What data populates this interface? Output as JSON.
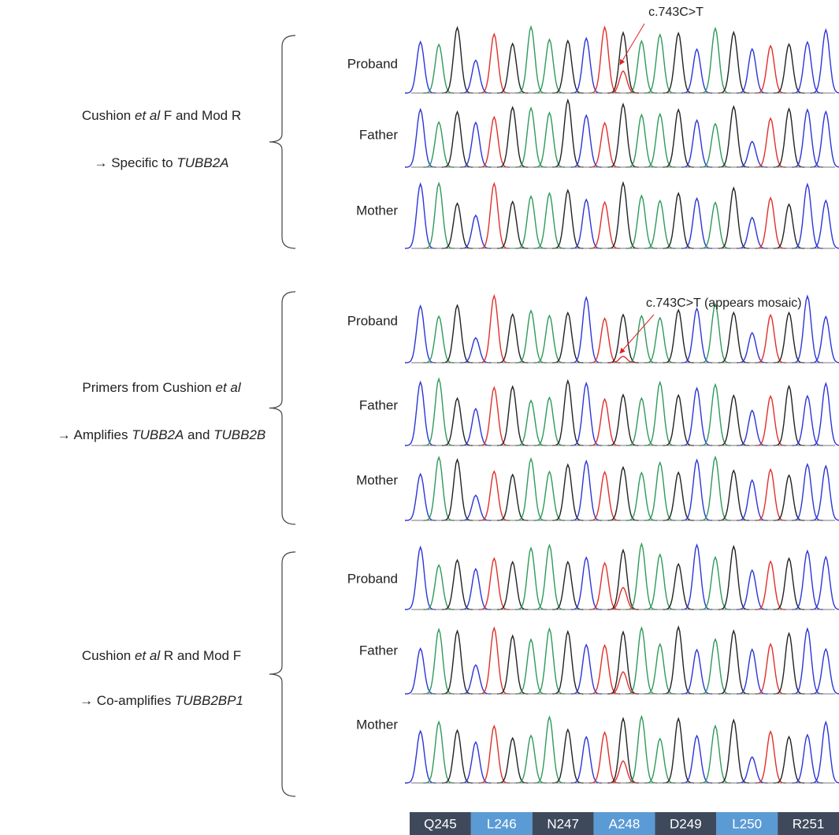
{
  "groups": [
    {
      "description": [
        [
          {
            "text": "Cushion "
          },
          {
            "text": "et al",
            "italic": true
          },
          {
            "text": " F and Mod R"
          }
        ],
        [
          {
            "text": "→ Specific to "
          },
          {
            "text": "TUBB2A",
            "italic": true
          }
        ]
      ],
      "samples": [
        "Proband",
        "Father",
        "Mother"
      ],
      "annotation": "c.743C>T"
    },
    {
      "description": [
        [
          {
            "text": "Primers from Cushion "
          },
          {
            "text": "et al",
            "italic": true
          }
        ],
        [
          {
            "text": "→ Amplifies "
          },
          {
            "text": "TUBB2A",
            "italic": true
          },
          {
            "text": " and "
          },
          {
            "text": "TUBB2B",
            "italic": true
          }
        ]
      ],
      "samples": [
        "Proband",
        "Father",
        "Mother"
      ],
      "annotation": "c.743C>T (appears mosaic)"
    },
    {
      "description": [
        [
          {
            "text": "Cushion "
          },
          {
            "text": "et al",
            "italic": true
          },
          {
            "text": " R and Mod F"
          }
        ],
        [
          {
            "text": "→ Co-amplifies "
          },
          {
            "text": "TUBB2BP1",
            "italic": true
          }
        ]
      ],
      "samples": [
        "Proband",
        "Father",
        "Mother"
      ]
    }
  ],
  "codons": [
    "Q245",
    "L246",
    "N247",
    "A248",
    "D249",
    "L250",
    "R251"
  ]
}
